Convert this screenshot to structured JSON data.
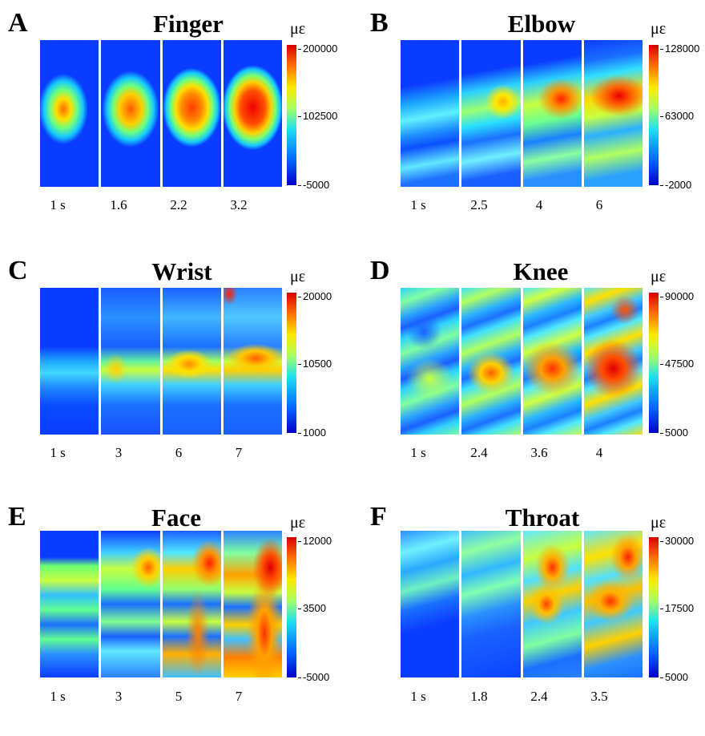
{
  "unit": "με",
  "panels": [
    {
      "letter": "A",
      "title": "Finger",
      "ticks": [
        "200000",
        "102500",
        "-5000"
      ],
      "times": [
        "1 s",
        "1.6",
        "2.2",
        "3.2"
      ]
    },
    {
      "letter": "B",
      "title": "Elbow",
      "ticks": [
        "128000",
        "63000",
        "-2000"
      ],
      "times": [
        "1 s",
        "2.5",
        "4",
        "6"
      ]
    },
    {
      "letter": "C",
      "title": "Wrist",
      "ticks": [
        "20000",
        "10500",
        "1000"
      ],
      "times": [
        "1 s",
        "3",
        "6",
        "7"
      ]
    },
    {
      "letter": "D",
      "title": "Knee",
      "ticks": [
        "90000",
        "47500",
        "5000"
      ],
      "times": [
        "1 s",
        "2.4",
        "3.6",
        "4"
      ]
    },
    {
      "letter": "E",
      "title": "Face",
      "ticks": [
        "12000",
        "3500",
        "-5000"
      ],
      "times": [
        "1 s",
        "3",
        "5",
        "7"
      ]
    },
    {
      "letter": "F",
      "title": "Throat",
      "ticks": [
        "30000",
        "17500",
        "5000"
      ],
      "times": [
        "1 s",
        "1.8",
        "2.4",
        "3.5"
      ]
    }
  ]
}
